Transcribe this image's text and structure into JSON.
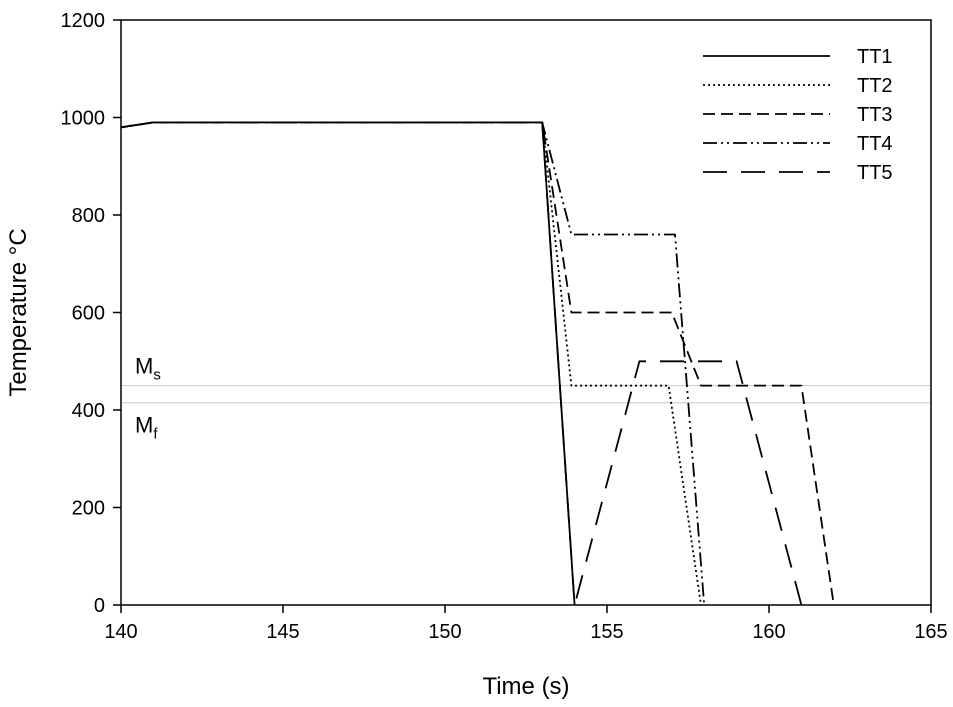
{
  "chart_data": {
    "type": "line",
    "title": "",
    "xlabel": "Time (s)",
    "ylabel": "Temperature °C",
    "xlim": [
      140,
      165
    ],
    "ylim": [
      0,
      1200
    ],
    "xticks": [
      140,
      145,
      150,
      155,
      160,
      165
    ],
    "yticks": [
      0,
      200,
      400,
      600,
      800,
      1000,
      1200
    ],
    "grid": false,
    "legend_position": "top-right",
    "series": [
      {
        "name": "TT1",
        "dash": "solid",
        "x": [
          140,
          141,
          153,
          154
        ],
        "y": [
          980,
          990,
          990,
          0
        ]
      },
      {
        "name": "TT2",
        "dash": "dotted",
        "x": [
          140,
          141,
          153,
          153.9,
          156.9,
          157.9
        ],
        "y": [
          980,
          990,
          990,
          450,
          450,
          0
        ]
      },
      {
        "name": "TT3",
        "dash": "dashed",
        "x": [
          140,
          141,
          153,
          153.9,
          157,
          157.9,
          161,
          162
        ],
        "y": [
          980,
          990,
          990,
          600,
          600,
          450,
          450,
          0
        ]
      },
      {
        "name": "TT4",
        "dash": "dash-dot-dot",
        "x": [
          140,
          141,
          153,
          153.9,
          157.1,
          158
        ],
        "y": [
          980,
          990,
          990,
          760,
          760,
          0
        ]
      },
      {
        "name": "TT5",
        "dash": "long-dash",
        "x": [
          140,
          141,
          153,
          154,
          156,
          159,
          161
        ],
        "y": [
          980,
          990,
          990,
          0,
          500,
          500,
          0
        ]
      }
    ],
    "reference_lines": [
      {
        "y": 450,
        "label_main": "M",
        "label_sub": "s"
      },
      {
        "y": 415,
        "label_main": "M",
        "label_sub": "f"
      }
    ]
  }
}
